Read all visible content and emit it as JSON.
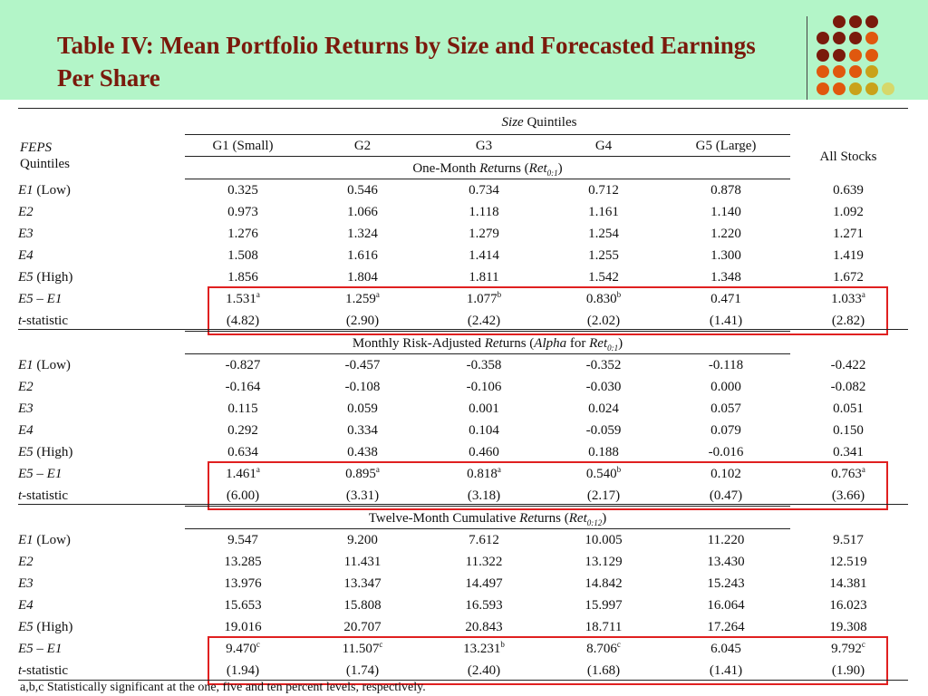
{
  "slide": {
    "title": "Table IV: Mean Portfolio Returns by Size and Forecasted Earnings Per Share",
    "dot_colors": [
      "#7a1a0c",
      "#e0580e",
      "#c9a21a",
      "#d6d86a"
    ]
  },
  "table": {
    "size_heading": "Quintiles",
    "size_heading_italic": "Size",
    "feps_label": "FEPS",
    "quintiles_label": "Quintiles",
    "columns": [
      "G1 (Small)",
      "G2",
      "G3",
      "G4",
      "G5 (Large)"
    ],
    "all_stocks": "All Stocks",
    "row_labels": [
      "E1 (Low)",
      "E2",
      "E3",
      "E4",
      "E5 (High)",
      "E5 – E1",
      "t-statistic"
    ],
    "panels": [
      {
        "heading": "One-Month Returns (Ret0:1)",
        "rows": [
          [
            "0.325",
            "0.546",
            "0.734",
            "0.712",
            "0.878",
            "0.639"
          ],
          [
            "0.973",
            "1.066",
            "1.118",
            "1.161",
            "1.140",
            "1.092"
          ],
          [
            "1.276",
            "1.324",
            "1.279",
            "1.254",
            "1.220",
            "1.271"
          ],
          [
            "1.508",
            "1.616",
            "1.414",
            "1.255",
            "1.300",
            "1.419"
          ],
          [
            "1.856",
            "1.804",
            "1.811",
            "1.542",
            "1.348",
            "1.672"
          ],
          [
            "1.531a",
            "1.259a",
            "1.077b",
            "0.830b",
            "0.471",
            "1.033a"
          ],
          [
            "(4.82)",
            "(2.90)",
            "(2.42)",
            "(2.02)",
            "(1.41)",
            "(2.82)"
          ]
        ]
      },
      {
        "heading": "Monthly Risk-Adjusted Returns (Alpha for Ret0:1)",
        "rows": [
          [
            "-0.827",
            "-0.457",
            "-0.358",
            "-0.352",
            "-0.118",
            "-0.422"
          ],
          [
            "-0.164",
            "-0.108",
            "-0.106",
            "-0.030",
            "0.000",
            "-0.082"
          ],
          [
            "0.115",
            "0.059",
            "0.001",
            "0.024",
            "0.057",
            "0.051"
          ],
          [
            "0.292",
            "0.334",
            "0.104",
            "-0.059",
            "0.079",
            "0.150"
          ],
          [
            "0.634",
            "0.438",
            "0.460",
            "0.188",
            "-0.016",
            "0.341"
          ],
          [
            "1.461a",
            "0.895a",
            "0.818a",
            "0.540b",
            "0.102",
            "0.763a"
          ],
          [
            "(6.00)",
            "(3.31)",
            "(3.18)",
            "(2.17)",
            "(0.47)",
            "(3.66)"
          ]
        ]
      },
      {
        "heading": "Twelve-Month Cumulative Returns (Ret0:12)",
        "rows": [
          [
            "9.547",
            "9.200",
            "7.612",
            "10.005",
            "11.220",
            "9.517"
          ],
          [
            "13.285",
            "11.431",
            "11.322",
            "13.129",
            "13.430",
            "12.519"
          ],
          [
            "13.976",
            "13.347",
            "14.497",
            "14.842",
            "15.243",
            "14.381"
          ],
          [
            "15.653",
            "15.808",
            "16.593",
            "15.997",
            "16.064",
            "16.023"
          ],
          [
            "19.016",
            "20.707",
            "20.843",
            "18.711",
            "17.264",
            "19.308"
          ],
          [
            "9.470c",
            "11.507c",
            "13.231b",
            "8.706c",
            "6.045",
            "9.792c"
          ],
          [
            "(1.94)",
            "(1.74)",
            "(2.40)",
            "(1.68)",
            "(1.41)",
            "(1.90)"
          ]
        ]
      }
    ],
    "footnote": "a,b,c Statistically significant at the one, five and ten percent levels, respectively."
  }
}
